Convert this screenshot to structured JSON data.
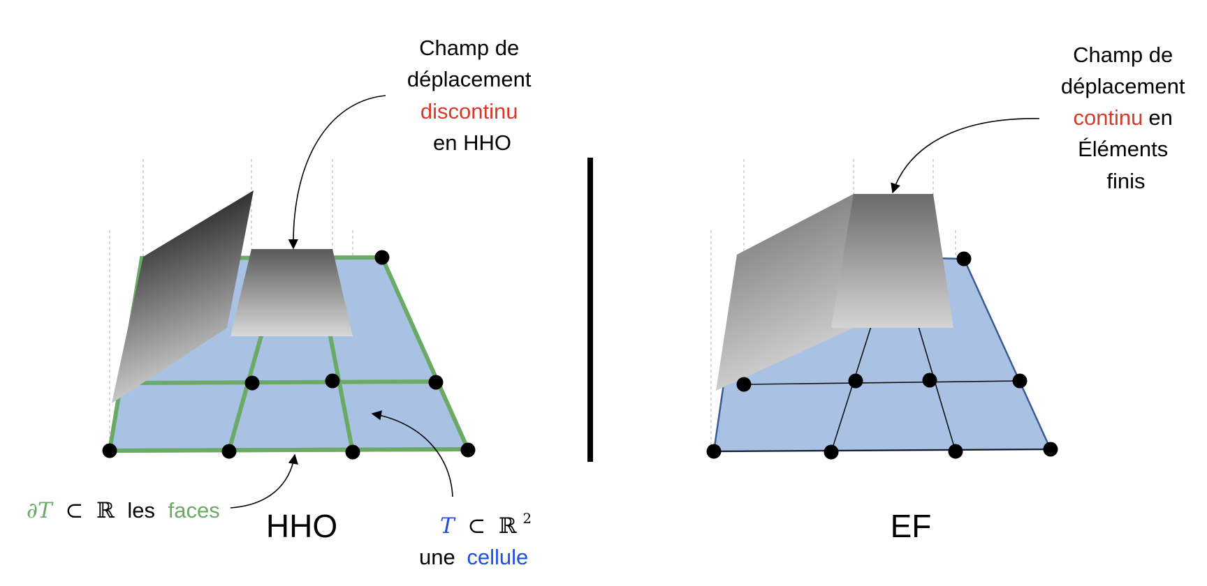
{
  "hho": {
    "field_label": [
      "Champ de",
      "déplacement",
      "discontinu",
      "en HHO"
    ],
    "title": "HHO",
    "faces_math": "∂T",
    "faces_subset": "⊂",
    "faces_R": "ℝ",
    "faces_les": "les",
    "faces_word": "faces",
    "cell_math": "T",
    "cell_subset": "⊂",
    "cell_R": "ℝ",
    "cell_exp": "2",
    "cell_une": "une",
    "cell_word": "cellule"
  },
  "ef": {
    "field_line1": "Champ de",
    "field_line2": "déplacement",
    "field_red": "continu",
    "field_en": "en",
    "field_line4": "Éléments",
    "field_line5": "finis",
    "title": "EF"
  },
  "colors": {
    "cell_fill": "#a9c2e3",
    "face_green": "#6aaa64",
    "ef_edge": "#3a5a95",
    "highlight_red": "#d8392b",
    "highlight_blue": "#1f4fe0"
  }
}
